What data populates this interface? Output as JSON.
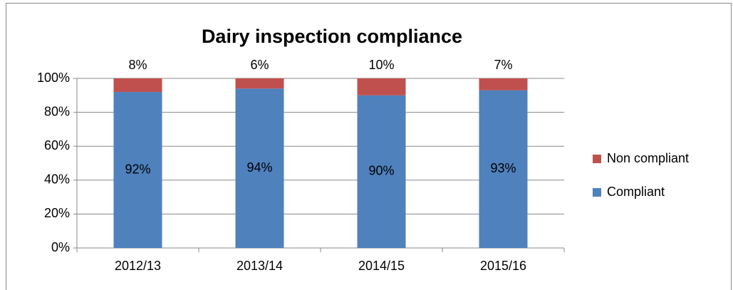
{
  "chart_data": {
    "type": "stacked-bar",
    "title": "Dairy inspection compliance",
    "categories": [
      "2012/13",
      "2013/14",
      "2014/15",
      "2015/16"
    ],
    "series": [
      {
        "name": "Compliant",
        "color": "#4f81bd",
        "values": [
          92,
          94,
          90,
          93
        ],
        "value_labels": [
          "92%",
          "94%",
          "90%",
          "93%"
        ]
      },
      {
        "name": "Non compliant",
        "color": "#c0504d",
        "values": [
          8,
          6,
          10,
          7
        ],
        "value_labels": [
          "8%",
          "6%",
          "10%",
          "7%"
        ]
      }
    ],
    "ylim": [
      0,
      100
    ],
    "yticks": [
      {
        "value": 0,
        "label": "0%"
      },
      {
        "value": 20,
        "label": "20%"
      },
      {
        "value": 40,
        "label": "40%"
      },
      {
        "value": 60,
        "label": "60%"
      },
      {
        "value": 80,
        "label": "80%"
      },
      {
        "value": 100,
        "label": "100%"
      }
    ],
    "grid": true,
    "legend": "right"
  }
}
